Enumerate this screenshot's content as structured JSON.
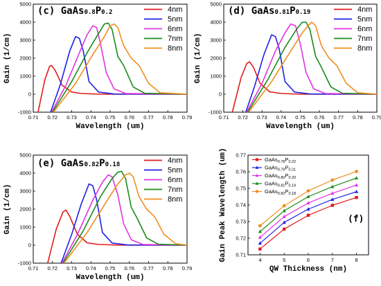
{
  "chart_data": [
    {
      "id": "c",
      "type": "line",
      "title_parts": [
        "(c) GaAs",
        "0.8",
        "P",
        "0.2"
      ],
      "xlabel": "Wavelength (um)",
      "ylabel": "Gain (1/cm)",
      "xlim": [
        0.71,
        0.79
      ],
      "ylim": [
        -1000,
        5000
      ],
      "xticks": [
        "0.71",
        "0.72",
        "0.73",
        "0.74",
        "0.75",
        "0.76",
        "0.77",
        "0.78",
        "0.79"
      ],
      "yticks": [
        "-1000",
        "0",
        "1000",
        "2000",
        "3000",
        "4000",
        "5000"
      ],
      "legend_position": "top-right",
      "series": [
        {
          "name": "4nm",
          "color": "#e41a1c",
          "x": [
            0.7125,
            0.716,
            0.7185,
            0.7195,
            0.7215,
            0.725,
            0.73,
            0.735,
            0.745,
            0.79
          ],
          "y": [
            -1000,
            800,
            1550,
            1600,
            1300,
            500,
            120,
            40,
            0,
            0
          ]
        },
        {
          "name": "5nm",
          "color": "#1f1fe6",
          "x": [
            0.719,
            0.724,
            0.729,
            0.732,
            0.734,
            0.736,
            0.739,
            0.744,
            0.752,
            0.79
          ],
          "y": [
            -1000,
            500,
            2400,
            3200,
            3100,
            2400,
            700,
            120,
            10,
            0
          ]
        },
        {
          "name": "6nm",
          "color": "#e033e0",
          "x": [
            0.7195,
            0.727,
            0.734,
            0.738,
            0.741,
            0.743,
            0.745,
            0.748,
            0.752,
            0.758,
            0.79
          ],
          "y": [
            -1000,
            500,
            2300,
            3300,
            3800,
            3700,
            2800,
            1200,
            300,
            40,
            0
          ]
        },
        {
          "name": "7nm",
          "color": "#1a8a1a",
          "x": [
            0.72,
            0.73,
            0.738,
            0.743,
            0.747,
            0.749,
            0.751,
            0.754,
            0.757,
            0.762,
            0.768,
            0.79
          ],
          "y": [
            -1000,
            700,
            2300,
            3200,
            3900,
            3950,
            3600,
            2100,
            1600,
            400,
            50,
            0
          ]
        },
        {
          "name": "8nm",
          "color": "#f28c1e",
          "x": [
            0.7205,
            0.732,
            0.741,
            0.747,
            0.75,
            0.752,
            0.754,
            0.757,
            0.761,
            0.765,
            0.77,
            0.776,
            0.79
          ],
          "y": [
            -1000,
            600,
            2200,
            3200,
            3800,
            3900,
            3700,
            2700,
            2000,
            1600,
            600,
            80,
            0
          ]
        }
      ]
    },
    {
      "id": "d",
      "type": "line",
      "title_parts": [
        "(d) GaAs",
        "0.81",
        "P",
        "0.19"
      ],
      "xlabel": "Wavelength (um)",
      "ylabel": "Gain (1/cm)",
      "xlim": [
        0.71,
        0.79
      ],
      "ylim": [
        -1000,
        5000
      ],
      "xticks": [
        "0.71",
        "0.72",
        "0.73",
        "0.74",
        "0.75",
        "0.76",
        "0.77",
        "0.78",
        "0.79"
      ],
      "yticks": [
        "-1000",
        "0",
        "1000",
        "2000",
        "3000",
        "4000",
        "5000"
      ],
      "legend_position": "top-right",
      "series": [
        {
          "name": "4nm",
          "color": "#e41a1c",
          "x": [
            0.7145,
            0.719,
            0.722,
            0.7235,
            0.7255,
            0.729,
            0.734,
            0.74,
            0.75,
            0.79
          ],
          "y": [
            -1000,
            900,
            1700,
            1800,
            1500,
            600,
            130,
            40,
            0,
            0
          ]
        },
        {
          "name": "5nm",
          "color": "#1f1fe6",
          "x": [
            0.7215,
            0.726,
            0.731,
            0.735,
            0.737,
            0.739,
            0.742,
            0.747,
            0.755,
            0.79
          ],
          "y": [
            -1000,
            400,
            2200,
            3300,
            3200,
            2500,
            700,
            120,
            10,
            0
          ]
        },
        {
          "name": "6nm",
          "color": "#e033e0",
          "x": [
            0.722,
            0.73,
            0.737,
            0.742,
            0.745,
            0.7475,
            0.75,
            0.753,
            0.757,
            0.763,
            0.79
          ],
          "y": [
            -1000,
            600,
            2400,
            3400,
            3900,
            3800,
            2800,
            1200,
            300,
            40,
            0
          ]
        },
        {
          "name": "7nm",
          "color": "#1a8a1a",
          "x": [
            0.7225,
            0.733,
            0.742,
            0.748,
            0.751,
            0.753,
            0.755,
            0.758,
            0.761,
            0.766,
            0.772,
            0.79
          ],
          "y": [
            -1000,
            800,
            2600,
            3600,
            4000,
            4000,
            3600,
            2100,
            1500,
            400,
            50,
            0
          ]
        },
        {
          "name": "8nm",
          "color": "#f28c1e",
          "x": [
            0.723,
            0.735,
            0.745,
            0.751,
            0.754,
            0.756,
            0.758,
            0.761,
            0.765,
            0.769,
            0.774,
            0.78,
            0.79
          ],
          "y": [
            -1000,
            700,
            2400,
            3400,
            3800,
            4000,
            3800,
            2700,
            2000,
            1600,
            600,
            80,
            0
          ]
        }
      ]
    },
    {
      "id": "e",
      "type": "line",
      "title_parts": [
        "(e) GaAs",
        "0.82",
        "P",
        "0.18"
      ],
      "xlabel": "Wavelength (um)",
      "ylabel": "Gain (1/cm)",
      "xlim": [
        0.71,
        0.79
      ],
      "ylim": [
        -1000,
        5000
      ],
      "xticks": [
        "0.71",
        "0.72",
        "0.73",
        "0.74",
        "0.75",
        "0.76",
        "0.77",
        "0.78",
        "0.79"
      ],
      "yticks": [
        "-1000",
        "0",
        "1000",
        "2000",
        "3000",
        "4000",
        "5000"
      ],
      "legend_position": "top-right",
      "series": [
        {
          "name": "4nm",
          "color": "#e41a1c",
          "x": [
            0.7175,
            0.722,
            0.7255,
            0.727,
            0.729,
            0.733,
            0.738,
            0.744,
            0.755,
            0.79
          ],
          "y": [
            -1000,
            900,
            1850,
            1950,
            1600,
            600,
            130,
            40,
            0,
            0
          ]
        },
        {
          "name": "5nm",
          "color": "#1f1fe6",
          "x": [
            0.7245,
            0.73,
            0.735,
            0.739,
            0.741,
            0.743,
            0.746,
            0.751,
            0.759,
            0.79
          ],
          "y": [
            -1000,
            600,
            2300,
            3400,
            3300,
            2500,
            700,
            120,
            10,
            0
          ]
        },
        {
          "name": "6nm",
          "color": "#e033e0",
          "x": [
            0.725,
            0.733,
            0.741,
            0.746,
            0.749,
            0.751,
            0.754,
            0.757,
            0.761,
            0.767,
            0.79
          ],
          "y": [
            -1000,
            600,
            2500,
            3500,
            3900,
            3800,
            2800,
            1200,
            300,
            40,
            0
          ]
        },
        {
          "name": "7nm",
          "color": "#1a8a1a",
          "x": [
            0.7255,
            0.736,
            0.745,
            0.751,
            0.754,
            0.756,
            0.758,
            0.761,
            0.764,
            0.769,
            0.775,
            0.79
          ],
          "y": [
            -1000,
            800,
            2700,
            3700,
            4050,
            4100,
            3700,
            2100,
            1500,
            400,
            50,
            0
          ]
        },
        {
          "name": "8nm",
          "color": "#f28c1e",
          "x": [
            0.726,
            0.738,
            0.748,
            0.754,
            0.758,
            0.76,
            0.762,
            0.765,
            0.769,
            0.773,
            0.778,
            0.784,
            0.79
          ],
          "y": [
            -1000,
            700,
            2400,
            3400,
            3900,
            4000,
            3800,
            2700,
            2000,
            1600,
            600,
            80,
            0
          ]
        }
      ]
    },
    {
      "id": "f",
      "type": "line",
      "tag": "(f)",
      "xlabel": "QW Thickness (nm)",
      "ylabel": "Gain Peak Wavelength (um)",
      "xlim": [
        3.5,
        8.5
      ],
      "ylim": [
        0.71,
        0.77
      ],
      "xticks": [
        "4",
        "5",
        "6",
        "7",
        "8"
      ],
      "yticks": [
        "0.71",
        "0.72",
        "0.73",
        "0.74",
        "0.75",
        "0.76",
        "0.77"
      ],
      "legend_position": "top-left",
      "series": [
        {
          "name_parts": [
            "GaAs",
            "0.78",
            "P",
            "0.22"
          ],
          "color": "#e41a1c",
          "marker": "square",
          "x": [
            4,
            5,
            6,
            7,
            8
          ],
          "y": [
            0.7135,
            0.7255,
            0.7338,
            0.7398,
            0.7445
          ]
        },
        {
          "name_parts": [
            "GaAs",
            "0.79",
            "P",
            "0.21"
          ],
          "color": "#1f1fe6",
          "marker": "triangle",
          "x": [
            4,
            5,
            6,
            7,
            8
          ],
          "y": [
            0.717,
            0.7295,
            0.7375,
            0.7433,
            0.748
          ]
        },
        {
          "name_parts": [
            "GaAs",
            "0.80",
            "P",
            "0.20"
          ],
          "color": "#e033e0",
          "marker": "triangle",
          "x": [
            4,
            5,
            6,
            7,
            8
          ],
          "y": [
            0.7205,
            0.733,
            0.7412,
            0.747,
            0.752
          ]
        },
        {
          "name_parts": [
            "GaAs",
            "0.81",
            "P",
            "0.19"
          ],
          "color": "#1a8a1a",
          "marker": "triangle",
          "x": [
            4,
            5,
            6,
            7,
            8
          ],
          "y": [
            0.724,
            0.7365,
            0.745,
            0.751,
            0.7562
          ]
        },
        {
          "name_parts": [
            "GaAs",
            "0.82",
            "P",
            "0.18"
          ],
          "color": "#f28c1e",
          "marker": "circle",
          "x": [
            4,
            5,
            6,
            7,
            8
          ],
          "y": [
            0.7275,
            0.7395,
            0.7485,
            0.755,
            0.7602
          ]
        }
      ]
    }
  ]
}
